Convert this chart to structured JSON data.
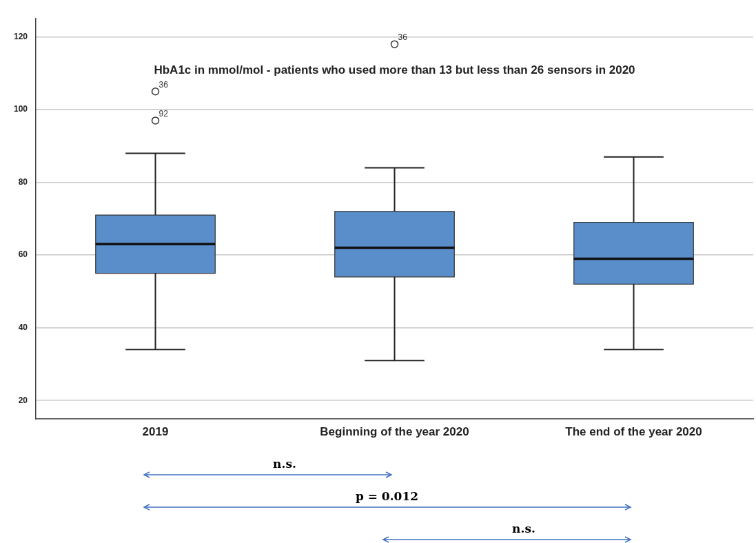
{
  "chart_data": {
    "type": "box",
    "title": "HbA1c in mmol/mol - patients who used more than 13 but less than 26 sensors in 2020",
    "categories": [
      "2019",
      "Beginning of the year 2020",
      "The end of the year 2020"
    ],
    "color": "#5a8ecb",
    "boxes": [
      {
        "low": 34,
        "q1": 55,
        "median": 63,
        "q3": 71,
        "high": 88,
        "outliers": [
          105,
          97
        ]
      },
      {
        "low": 31,
        "q1": 54,
        "median": 62,
        "q3": 72,
        "high": 84,
        "outliers": [
          118
        ]
      },
      {
        "low": 34,
        "q1": 52,
        "median": 59,
        "q3": 69,
        "high": 87
      }
    ],
    "ylim": [
      15,
      125
    ],
    "yticks": [
      20,
      40,
      60,
      80,
      100,
      120
    ],
    "grid": "y",
    "legend": false,
    "annotations": [
      "36",
      "92",
      "36",
      "n.s.",
      "p = 0.012",
      "n.s."
    ]
  }
}
